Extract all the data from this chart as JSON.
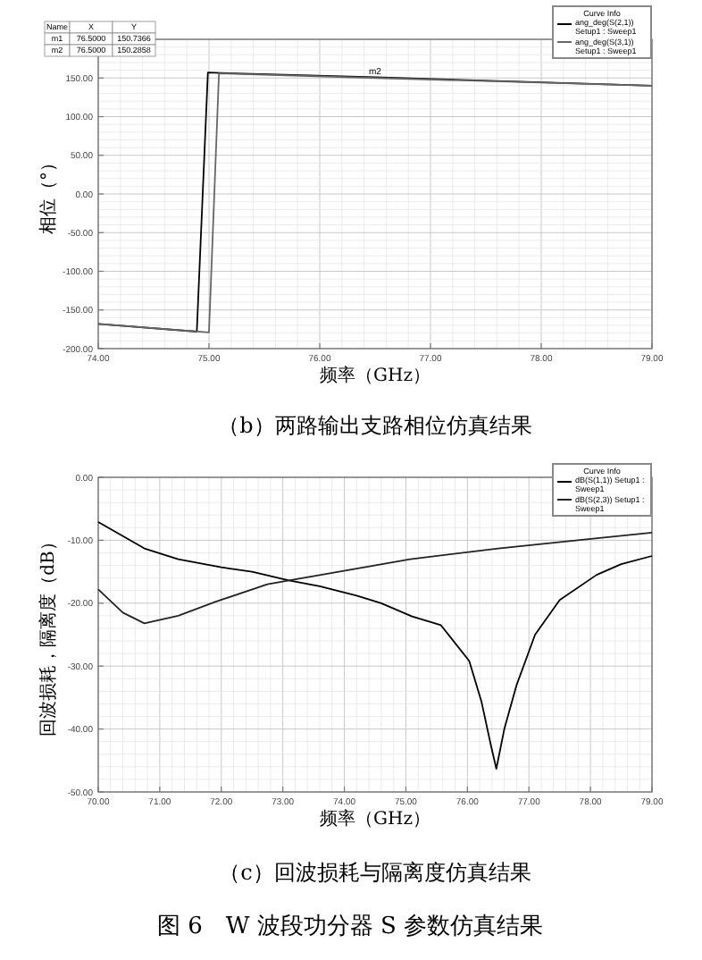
{
  "chart_data": [
    {
      "type": "line",
      "title": "（b）两路输出支路相位仿真结果",
      "xlabel": "频率（GHz）",
      "ylabel": "相位（°）",
      "xlim": [
        74,
        79
      ],
      "xticks": [
        {
          "value": 74,
          "label": "74.00"
        },
        {
          "value": 75,
          "label": "75.00"
        },
        {
          "value": 76,
          "label": "76.00"
        },
        {
          "value": 77,
          "label": "77.00"
        },
        {
          "value": 78,
          "label": "78.00"
        },
        {
          "value": 79,
          "label": "79.00"
        }
      ],
      "ylim": [
        -200,
        200
      ],
      "yticks": [
        {
          "value": -200,
          "label": "-200.00"
        },
        {
          "value": -150,
          "label": "-150.00"
        },
        {
          "value": -100,
          "label": "-100.00"
        },
        {
          "value": -50,
          "label": "-50.00"
        },
        {
          "value": 0,
          "label": "0.00"
        },
        {
          "value": 50,
          "label": "50.00"
        },
        {
          "value": 100,
          "label": "100.00"
        },
        {
          "value": 150,
          "label": "150.00"
        },
        {
          "value": 200,
          "label": null
        }
      ],
      "grid": true,
      "legend": "top right",
      "legend_title": "Curve Info",
      "series": [
        {
          "name": "ang_deg(S(2,1)) Setup1 : Sweep1",
          "color": "#000000",
          "x": [
            74,
            74.89,
            74.99,
            76.5,
            79
          ],
          "values": [
            -168,
            -178,
            157,
            151,
            140
          ]
        },
        {
          "name": "ang_deg(S(3,1)) Setup1 : Sweep1",
          "color": "#666666",
          "x": [
            74,
            75.0,
            75.09,
            76.5,
            79
          ],
          "values": [
            -168,
            -179,
            156,
            150,
            140
          ]
        }
      ],
      "annotations": [
        {
          "text": "m2",
          "x": 76.5,
          "y": 150.2858
        },
        "Name",
        "X",
        "Y",
        "m1",
        "76.5000",
        "150.7366",
        "m2",
        "76.5000",
        "150.2858"
      ]
    },
    {
      "type": "line",
      "title": "（c）回波损耗与隔离度仿真结果",
      "xlabel": "频率（GHz）",
      "ylabel": "回波损耗，隔离度（dB）",
      "xlim": [
        70,
        79
      ],
      "xticks": [
        {
          "value": 70,
          "label": "70.00"
        },
        {
          "value": 71,
          "label": "71.00"
        },
        {
          "value": 72,
          "label": "72.00"
        },
        {
          "value": 73,
          "label": "73.00"
        },
        {
          "value": 74,
          "label": "74.00"
        },
        {
          "value": 75,
          "label": "75.00"
        },
        {
          "value": 76,
          "label": "76.00"
        },
        {
          "value": 77,
          "label": "77.00"
        },
        {
          "value": 78,
          "label": "78.00"
        },
        {
          "value": 79,
          "label": "79.00"
        }
      ],
      "ylim": [
        -50,
        0
      ],
      "yticks": [
        {
          "value": -50,
          "label": "-50.00"
        },
        {
          "value": -40,
          "label": "-40.00"
        },
        {
          "value": -30,
          "label": "-30.00"
        },
        {
          "value": -20,
          "label": "-20.00"
        },
        {
          "value": -10,
          "label": "-10.00"
        },
        {
          "value": 0,
          "label": "0.00"
        }
      ],
      "grid": true,
      "legend": "top right",
      "legend_title": "Curve Info",
      "series": [
        {
          "name": "dB(S(1,1)) Setup1 : Sweep1",
          "color": "#000000",
          "x": [
            70,
            70.75,
            71.3,
            72,
            72.5,
            73.1,
            73.6,
            74.2,
            74.6,
            75.1,
            75.57,
            76.03,
            76.23,
            76.38,
            76.47,
            76.6,
            76.8,
            77.1,
            77.5,
            78.1,
            78.5,
            79
          ],
          "values": [
            -7.1,
            -11.3,
            -13,
            -14.3,
            -15,
            -16.4,
            -17.3,
            -18.8,
            -20,
            -22.1,
            -23.5,
            -29.2,
            -35.7,
            -42.5,
            -46.3,
            -40,
            -33,
            -25,
            -19.5,
            -15.5,
            -13.8,
            -12.5
          ]
        },
        {
          "name": "dB(S(2,3)) Setup1 : Sweep1",
          "color": "#222222",
          "x": [
            70,
            70.4,
            70.75,
            71.3,
            71.9,
            72.75,
            73.1,
            74.2,
            75.07,
            76.5,
            77.9,
            79
          ],
          "values": [
            -17.8,
            -21.5,
            -23.2,
            -22,
            -19.8,
            -17,
            -16.4,
            -14.5,
            -13,
            -11.3,
            -9.9,
            -8.8
          ]
        }
      ],
      "annotations": [
        "图 6　W 波段功分器 S 参数仿真结果"
      ]
    }
  ]
}
